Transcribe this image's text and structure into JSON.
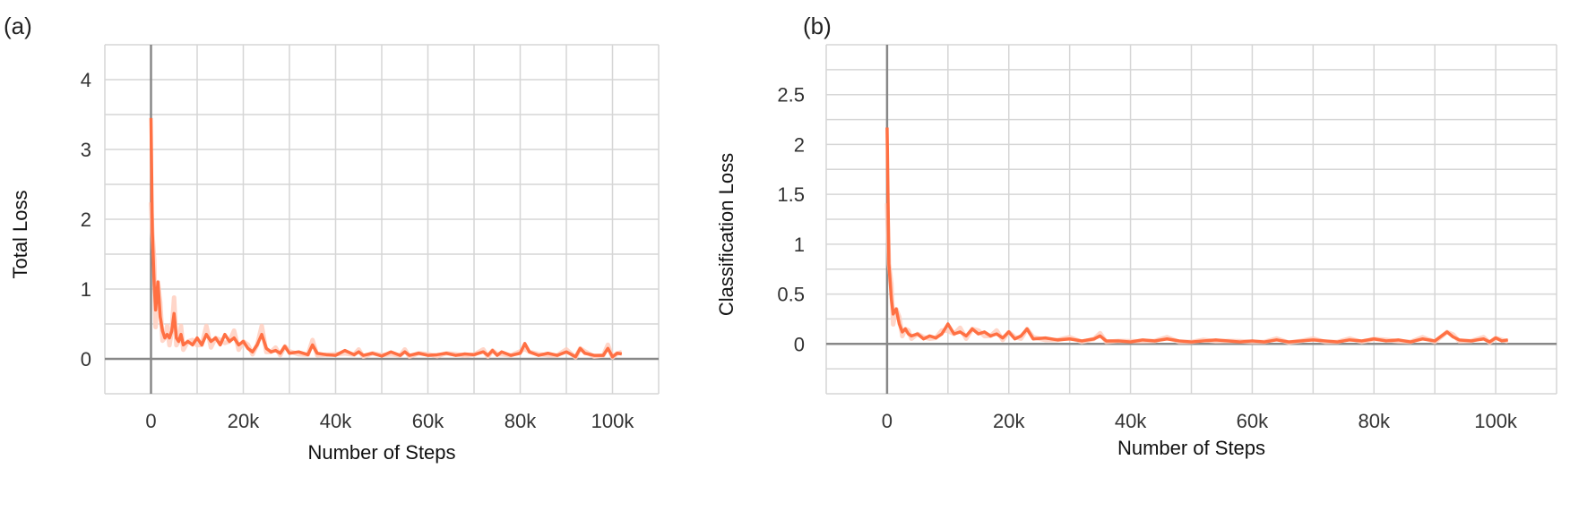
{
  "panels": {
    "a_label": "(a)",
    "b_label": "(b)"
  },
  "colors": {
    "series": "#ff7043",
    "band": "#ffccbc",
    "grid": "#d6d6d6",
    "axis": "#888888"
  },
  "chart_data": [
    {
      "type": "line",
      "xlabel": "Number of Steps",
      "ylabel": "Total Loss",
      "xlim": [
        -10000,
        110000
      ],
      "ylim": [
        -0.5,
        4.5
      ],
      "xticks": [
        0,
        20000,
        40000,
        60000,
        80000,
        100000
      ],
      "xtick_labels": [
        "0",
        "20k",
        "40k",
        "60k",
        "80k",
        "100k"
      ],
      "yticks": [
        0,
        1,
        2,
        3,
        4
      ],
      "ytick_labels": [
        "0",
        "1",
        "2",
        "3",
        "4"
      ],
      "grid": true,
      "x": [
        0,
        300,
        700,
        1000,
        1500,
        2000,
        2500,
        3000,
        3500,
        4000,
        4500,
        5000,
        5500,
        6000,
        6500,
        7000,
        8000,
        9000,
        10000,
        11000,
        12000,
        13000,
        14000,
        15000,
        16000,
        17000,
        18000,
        19000,
        20000,
        21000,
        22000,
        23000,
        24000,
        25000,
        26000,
        27000,
        28000,
        29000,
        30000,
        32000,
        34000,
        35000,
        36000,
        38000,
        40000,
        42000,
        44000,
        45000,
        46000,
        48000,
        50000,
        52000,
        54000,
        55000,
        56000,
        58000,
        60000,
        62000,
        64000,
        66000,
        68000,
        70000,
        72000,
        73000,
        74000,
        75000,
        76000,
        78000,
        80000,
        81000,
        82000,
        84000,
        86000,
        88000,
        90000,
        92000,
        93000,
        94000,
        96000,
        98000,
        99000,
        100000,
        101000,
        102000
      ],
      "series": [
        {
          "values": [
            3.45,
            1.8,
            1.05,
            0.7,
            1.1,
            0.6,
            0.4,
            0.3,
            0.35,
            0.3,
            0.4,
            0.65,
            0.3,
            0.25,
            0.35,
            0.2,
            0.25,
            0.2,
            0.3,
            0.2,
            0.35,
            0.25,
            0.3,
            0.2,
            0.35,
            0.25,
            0.3,
            0.2,
            0.25,
            0.15,
            0.1,
            0.2,
            0.35,
            0.15,
            0.1,
            0.12,
            0.08,
            0.18,
            0.08,
            0.1,
            0.06,
            0.2,
            0.08,
            0.06,
            0.05,
            0.12,
            0.06,
            0.1,
            0.05,
            0.08,
            0.04,
            0.1,
            0.05,
            0.1,
            0.05,
            0.08,
            0.05,
            0.06,
            0.08,
            0.05,
            0.07,
            0.06,
            0.1,
            0.05,
            0.12,
            0.05,
            0.1,
            0.05,
            0.08,
            0.22,
            0.1,
            0.05,
            0.08,
            0.05,
            0.1,
            0.03,
            0.15,
            0.08,
            0.05,
            0.05,
            0.15,
            0.03,
            0.08,
            0.07
          ]
        }
      ]
    },
    {
      "type": "line",
      "xlabel": "Number of Steps",
      "ylabel": "Classification  Loss",
      "xlim": [
        -10000,
        110000
      ],
      "ylim": [
        -0.5,
        3.0
      ],
      "xticks": [
        0,
        20000,
        40000,
        60000,
        80000,
        100000
      ],
      "xtick_labels": [
        "0",
        "20k",
        "40k",
        "60k",
        "80k",
        "100k"
      ],
      "yticks": [
        0,
        0.5,
        1,
        1.5,
        2,
        2.5
      ],
      "ytick_labels": [
        "0",
        "0.5",
        "1",
        "1.5",
        "2",
        "2.5"
      ],
      "grid": true,
      "x": [
        0,
        300,
        700,
        1000,
        1500,
        2000,
        2500,
        3000,
        3500,
        4000,
        5000,
        6000,
        7000,
        8000,
        9000,
        10000,
        11000,
        12000,
        13000,
        14000,
        15000,
        16000,
        17000,
        18000,
        19000,
        20000,
        21000,
        22000,
        23000,
        24000,
        26000,
        28000,
        30000,
        32000,
        34000,
        35000,
        36000,
        38000,
        40000,
        42000,
        44000,
        46000,
        48000,
        50000,
        52000,
        54000,
        56000,
        58000,
        60000,
        62000,
        64000,
        66000,
        68000,
        70000,
        72000,
        74000,
        76000,
        78000,
        80000,
        82000,
        84000,
        86000,
        88000,
        90000,
        92000,
        93000,
        94000,
        96000,
        98000,
        99000,
        100000,
        101000,
        102000
      ],
      "series": [
        {
          "values": [
            2.17,
            0.8,
            0.45,
            0.3,
            0.35,
            0.2,
            0.12,
            0.15,
            0.1,
            0.08,
            0.1,
            0.05,
            0.08,
            0.06,
            0.1,
            0.2,
            0.1,
            0.12,
            0.08,
            0.15,
            0.1,
            0.12,
            0.08,
            0.1,
            0.06,
            0.12,
            0.05,
            0.08,
            0.15,
            0.05,
            0.06,
            0.04,
            0.05,
            0.03,
            0.05,
            0.08,
            0.03,
            0.03,
            0.02,
            0.04,
            0.03,
            0.05,
            0.03,
            0.02,
            0.03,
            0.04,
            0.03,
            0.02,
            0.03,
            0.02,
            0.04,
            0.02,
            0.03,
            0.04,
            0.03,
            0.02,
            0.04,
            0.03,
            0.05,
            0.03,
            0.04,
            0.02,
            0.05,
            0.03,
            0.12,
            0.07,
            0.04,
            0.03,
            0.05,
            0.02,
            0.06,
            0.03,
            0.04
          ]
        }
      ]
    }
  ]
}
